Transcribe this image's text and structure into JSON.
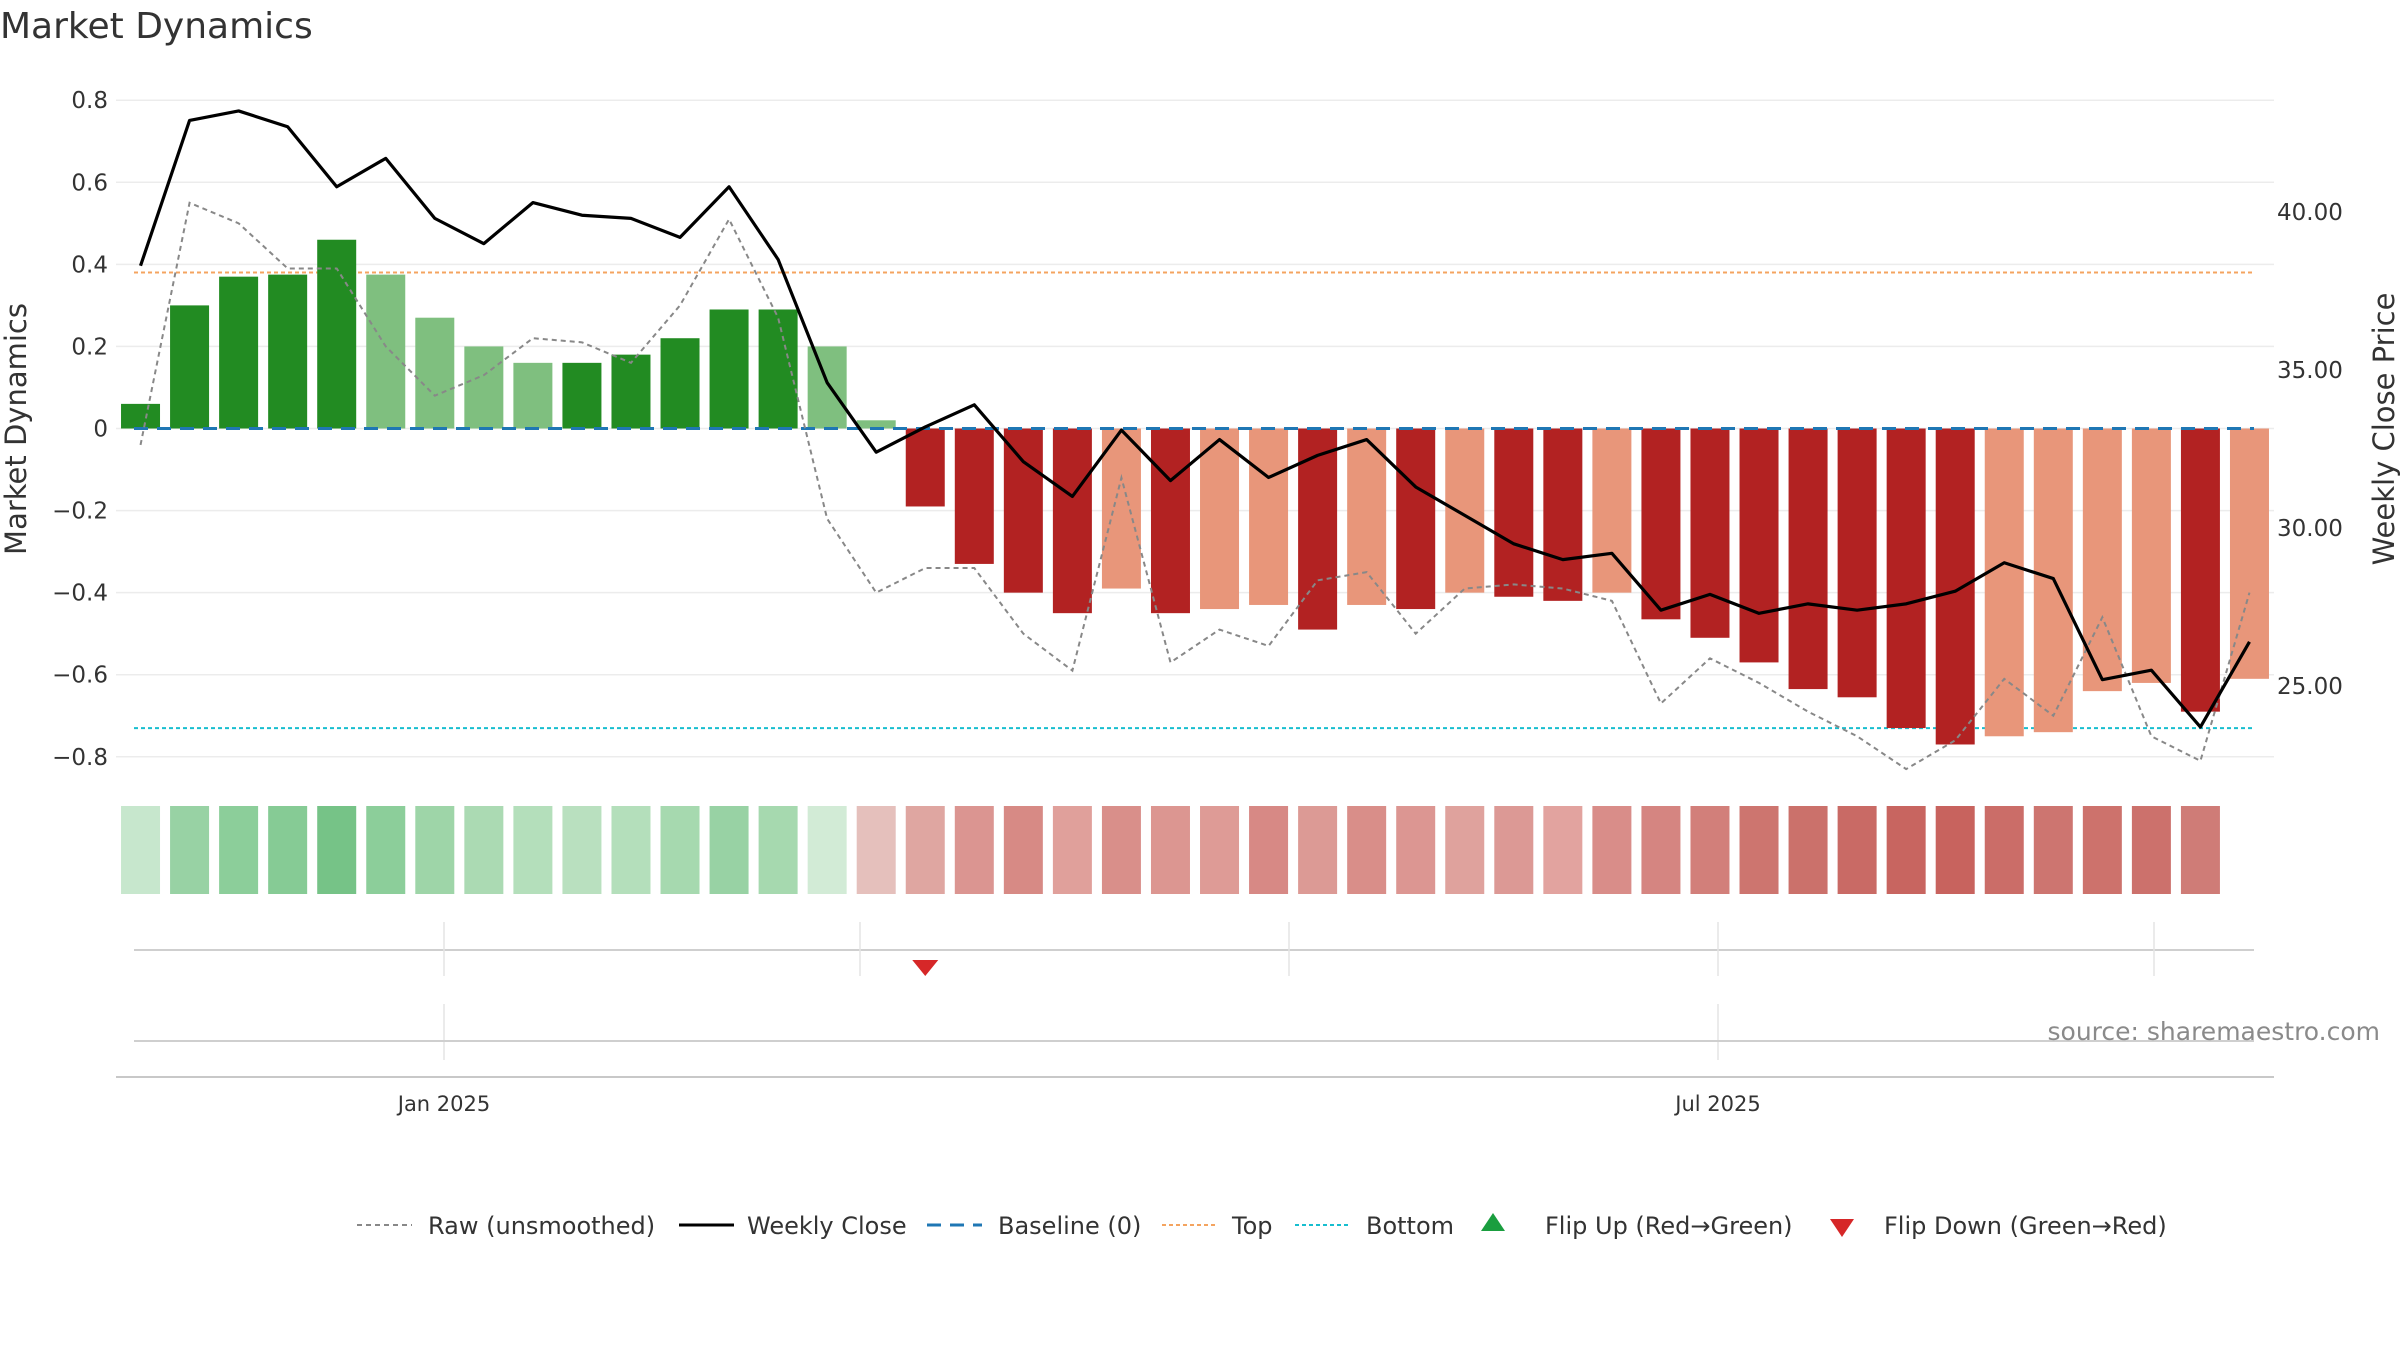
{
  "title": "Market Dynamics",
  "source": "source: sharemaestro.com",
  "chart_data": {
    "type": "bar",
    "x_count": 44,
    "bar_values": [
      0.06,
      0.3,
      0.37,
      0.375,
      0.46,
      0.375,
      0.27,
      0.2,
      0.16,
      0.16,
      0.18,
      0.22,
      0.29,
      0.29,
      0.2,
      0.02,
      -0.19,
      -0.33,
      -0.4,
      -0.45,
      -0.39,
      -0.45,
      -0.44,
      -0.43,
      -0.49,
      -0.43,
      -0.44,
      -0.4,
      -0.41,
      -0.42,
      -0.4,
      -0.465,
      -0.51,
      -0.57,
      -0.635,
      -0.655,
      -0.73,
      -0.77,
      -0.75,
      -0.74,
      -0.64,
      -0.62,
      -0.69,
      -0.61
    ],
    "bar_colors": [
      "#228b22",
      "#228b22",
      "#228b22",
      "#228b22",
      "#228b22",
      "#7fbf7f",
      "#7fbf7f",
      "#7fbf7f",
      "#7fbf7f",
      "#228b22",
      "#228b22",
      "#228b22",
      "#228b22",
      "#228b22",
      "#7fbf7f",
      "#7fbf7f",
      "#b22222",
      "#b22222",
      "#b22222",
      "#b22222",
      "#e8967a",
      "#b22222",
      "#e8967a",
      "#e8967a",
      "#b22222",
      "#e8967a",
      "#b22222",
      "#e8967a",
      "#b22222",
      "#b22222",
      "#e8967a",
      "#b22222",
      "#b22222",
      "#b22222",
      "#b22222",
      "#b22222",
      "#b22222",
      "#b22222",
      "#e8967a",
      "#e8967a",
      "#e8967a",
      "#e8967a",
      "#b22222",
      "#e8967a"
    ],
    "raw_values": [
      -0.04,
      0.55,
      0.5,
      0.39,
      0.39,
      0.2,
      0.08,
      0.13,
      0.22,
      0.21,
      0.16,
      0.3,
      0.51,
      0.27,
      -0.22,
      -0.4,
      -0.34,
      -0.34,
      -0.5,
      -0.59,
      -0.12,
      -0.57,
      -0.49,
      -0.53,
      -0.37,
      -0.35,
      -0.5,
      -0.39,
      -0.38,
      -0.39,
      -0.42,
      -0.67,
      -0.56,
      -0.62,
      -0.69,
      -0.75,
      -0.83,
      -0.76,
      -0.61,
      -0.7,
      -0.46,
      -0.75,
      -0.81,
      -0.4
    ],
    "weekly_close": [
      38.3,
      42.9,
      43.2,
      42.7,
      40.8,
      41.7,
      39.8,
      39.0,
      40.3,
      39.9,
      39.8,
      39.2,
      40.8,
      38.5,
      34.6,
      32.4,
      33.2,
      33.9,
      32.1,
      31.0,
      33.1,
      31.5,
      32.8,
      31.6,
      32.3,
      32.8,
      31.3,
      30.4,
      29.5,
      29.0,
      29.2,
      27.4,
      27.9,
      27.3,
      27.6,
      27.4,
      27.6,
      28.0,
      28.9,
      28.4,
      25.2,
      25.5,
      23.7,
      26.4
    ],
    "weekly_close_unit": "Weekly Close Price",
    "top": 0.38,
    "bottom": -0.73,
    "baseline": 0,
    "ylim_left": [
      -0.82,
      0.82
    ],
    "ylim_right": [
      22.5,
      43.8
    ],
    "yticks_left": [
      "0.8",
      "0.6",
      "0.4",
      "0.2",
      "0",
      "−0.2",
      "−0.4",
      "−0.6",
      "−0.8"
    ],
    "yticks_right": [
      "40.00",
      "35.00",
      "30.00",
      "25.00"
    ],
    "ylabel_left": "Market Dynamics",
    "ylabel_right": "Weekly Close Price",
    "heat_colors": [
      "#c7e7cd",
      "#98d2a4",
      "#8cce9a",
      "#86cb95",
      "#76c387",
      "#8cce9a",
      "#9ed5a8",
      "#abdab3",
      "#b4dfbb",
      "#b9e0bf",
      "#b4dfbb",
      "#a6d9af",
      "#98d2a4",
      "#a6d9af",
      "#d2ebd6",
      "#e5c0bc",
      "#dfa6a1",
      "#db9591",
      "#d78a85",
      "#e0a09b",
      "#d98f8a",
      "#dc9691",
      "#de9b96",
      "#d78985",
      "#dc9a95",
      "#d98e89",
      "#dc9692",
      "#dfa29d",
      "#dc9995",
      "#e2a39f",
      "#d98d89",
      "#d58581",
      "#d27f7a",
      "#cd756f",
      "#cb716b",
      "#c96a65",
      "#c86560",
      "#c8635e",
      "#cb6d68",
      "#cd7570",
      "#cd726c",
      "#cc716c",
      "#cf7c77"
    ],
    "flip_down_marker_index": 16,
    "flip_up_marker_indices": [],
    "xtick_labels": [
      "Jan 2025",
      "Jul 2025"
    ],
    "legend": [
      {
        "label": "Raw (unsmoothed)",
        "style": "dotted-gray"
      },
      {
        "label": "Weekly Close",
        "style": "solid-black"
      },
      {
        "label": "Baseline (0)",
        "style": "dashed-blue"
      },
      {
        "label": "Top",
        "style": "dotted-orange"
      },
      {
        "label": "Bottom",
        "style": "dotted-cyan"
      },
      {
        "label": "Flip Up (Red→Green)",
        "style": "triangle-up-green"
      },
      {
        "label": "Flip Down (Green→Red)",
        "style": "triangle-down-red"
      }
    ]
  },
  "colors": {
    "bar_strong_green": "#228b22",
    "bar_light_green": "#7fbf7f",
    "bar_strong_red": "#b22222",
    "bar_light_red": "#e8967a",
    "raw_line": "#888888",
    "weekly_line": "#000000",
    "baseline": "#1f77b4",
    "top": "#f4a460",
    "bottom": "#17becf",
    "flip_up": "#1a9e3f",
    "flip_down": "#d62728"
  }
}
